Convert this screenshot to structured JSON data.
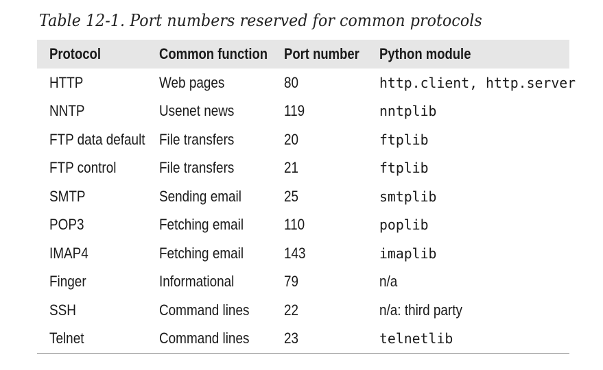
{
  "caption": "Table 12-1. Port numbers reserved for common protocols",
  "columns": [
    "Protocol",
    "Common function",
    "Port number",
    "Python module"
  ],
  "rows": [
    {
      "protocol": "HTTP",
      "function": "Web pages",
      "port": "80",
      "module": "http.client, http.server",
      "module_mono": true
    },
    {
      "protocol": "NNTP",
      "function": "Usenet news",
      "port": "119",
      "module": "nntplib",
      "module_mono": true
    },
    {
      "protocol": "FTP data default",
      "function": "File transfers",
      "port": "20",
      "module": "ftplib",
      "module_mono": true
    },
    {
      "protocol": "FTP control",
      "function": "File transfers",
      "port": "21",
      "module": "ftplib",
      "module_mono": true
    },
    {
      "protocol": "SMTP",
      "function": "Sending email",
      "port": "25",
      "module": "smtplib",
      "module_mono": true
    },
    {
      "protocol": "POP3",
      "function": "Fetching email",
      "port": "110",
      "module": "poplib",
      "module_mono": true
    },
    {
      "protocol": "IMAP4",
      "function": "Fetching email",
      "port": "143",
      "module": "imaplib",
      "module_mono": true
    },
    {
      "protocol": "Finger",
      "function": "Informational",
      "port": "79",
      "module": "n/a",
      "module_mono": false
    },
    {
      "protocol": "SSH",
      "function": "Command lines",
      "port": "22",
      "module": "n/a: third party",
      "module_mono": false
    },
    {
      "protocol": "Telnet",
      "function": "Command lines",
      "port": "23",
      "module": "telnetlib",
      "module_mono": true
    }
  ],
  "colors": {
    "header_bg": "#e6e6e6",
    "rule": "#8a8a8a",
    "text": "#1a1a1a"
  }
}
